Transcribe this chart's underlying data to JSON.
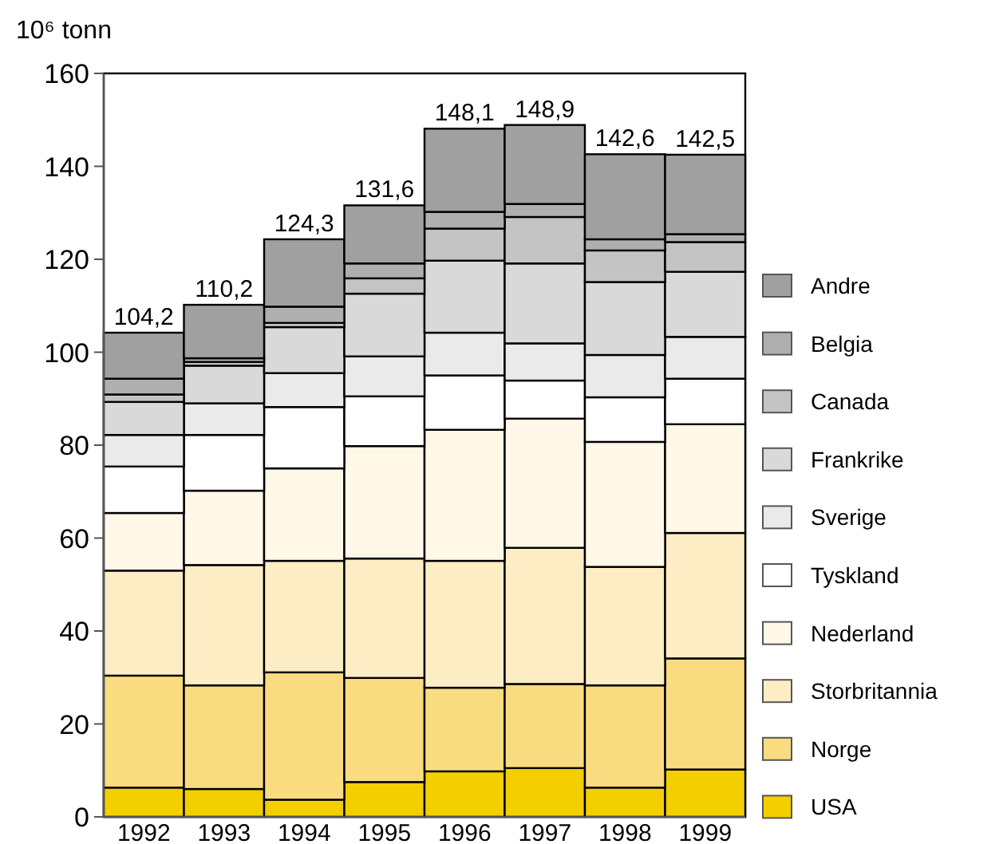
{
  "chart_data": {
    "type": "bar",
    "stacked": true,
    "ylabel": "10⁶ tonn",
    "categories": [
      "1992",
      "1993",
      "1994",
      "1995",
      "1996",
      "1997",
      "1998",
      "1999"
    ],
    "series": [
      {
        "name": "USA",
        "color": "#f4cf00",
        "values": [
          6.3,
          6.0,
          3.7,
          7.5,
          9.8,
          10.5,
          6.3,
          10.2
        ]
      },
      {
        "name": "Norge",
        "color": "#fadc80",
        "values": [
          24.1,
          22.3,
          27.4,
          22.4,
          18.0,
          18.1,
          22.0,
          23.9
        ]
      },
      {
        "name": "Storbritannia",
        "color": "#fdedc5",
        "values": [
          22.6,
          25.9,
          24.0,
          25.7,
          27.3,
          29.3,
          25.5,
          27.0
        ]
      },
      {
        "name": "Nederland",
        "color": "#fff7e8",
        "values": [
          12.4,
          16.0,
          19.9,
          24.2,
          28.2,
          27.8,
          26.9,
          23.4
        ]
      },
      {
        "name": "Tyskland",
        "color": "#ffffff",
        "values": [
          10.0,
          12.0,
          13.2,
          10.7,
          11.7,
          8.2,
          9.6,
          9.8
        ]
      },
      {
        "name": "Sverige",
        "color": "#eaeaea",
        "values": [
          6.8,
          6.8,
          7.3,
          8.6,
          9.2,
          8.0,
          9.1,
          9.0
        ]
      },
      {
        "name": "Frankrike",
        "color": "#d9d9d9",
        "values": [
          7.1,
          8.1,
          9.9,
          13.5,
          15.5,
          17.2,
          15.7,
          14.0
        ]
      },
      {
        "name": "Canada",
        "color": "#c4c4c4",
        "values": [
          1.6,
          0.8,
          0.9,
          3.3,
          6.9,
          10.0,
          6.8,
          6.4
        ]
      },
      {
        "name": "Belgia",
        "color": "#afafaf",
        "values": [
          3.4,
          0.8,
          3.5,
          3.2,
          3.6,
          2.8,
          2.4,
          1.7
        ]
      },
      {
        "name": "Andre",
        "color": "#a0a0a0",
        "values": [
          9.9,
          11.5,
          14.5,
          12.5,
          17.9,
          17.0,
          18.3,
          17.1
        ]
      }
    ],
    "totals": [
      "104,2",
      "110,2",
      "124,3",
      "131,6",
      "148,1",
      "148,9",
      "142,6",
      "142,5"
    ],
    "ylim": [
      0,
      160
    ],
    "yticks": [
      0,
      20,
      40,
      60,
      80,
      100,
      120,
      140,
      160
    ],
    "grid": false,
    "legend": "right"
  }
}
